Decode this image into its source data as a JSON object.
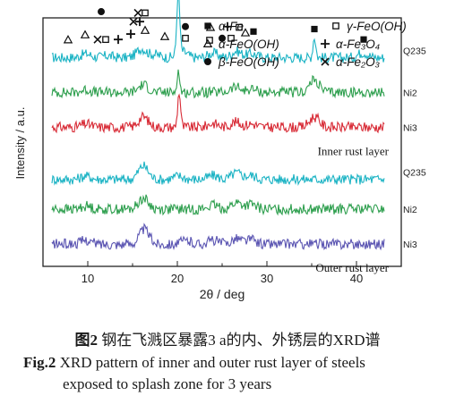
{
  "chart_data": {
    "type": "line",
    "xlabel": "2θ / deg",
    "ylabel": "Intensity / a.u.",
    "xlim": [
      5,
      45
    ],
    "xticks": [
      10,
      20,
      30,
      40
    ],
    "y_tick_labels": false,
    "groups": [
      {
        "label": "Inner rust layer",
        "series": [
          {
            "name": "Q235",
            "color": "#1bb3c4",
            "baseline": 0.84,
            "peaks": [
              [
                9.8,
                0.6
              ],
              [
                12.2,
                0.3
              ],
              [
                16.0,
                1.4
              ],
              [
                17.5,
                0.5
              ],
              [
                20.1,
                9.5
              ],
              [
                20.5,
                1.0
              ],
              [
                24.0,
                0.7
              ],
              [
                26.6,
                1.0
              ],
              [
                28.3,
                0.6
              ],
              [
                35.3,
                3.2
              ],
              [
                40.7,
                0.8
              ]
            ]
          },
          {
            "name": "Ni2",
            "color": "#2e9f4e",
            "baseline": 0.7,
            "peaks": [
              [
                9.8,
                0.4
              ],
              [
                16.2,
                1.2
              ],
              [
                20.1,
                3.2
              ],
              [
                26.5,
                0.8
              ],
              [
                28.3,
                0.5
              ],
              [
                35.3,
                1.9
              ]
            ]
          },
          {
            "name": "Ni3",
            "color": "#d82b36",
            "baseline": 0.56,
            "peaks": [
              [
                9.8,
                0.5
              ],
              [
                16.2,
                1.6
              ],
              [
                20.2,
                5.5
              ],
              [
                24.0,
                0.6
              ],
              [
                26.5,
                0.8
              ],
              [
                28.3,
                0.5
              ],
              [
                35.3,
                1.6
              ]
            ]
          }
        ]
      },
      {
        "label": "Outer rust layer",
        "series": [
          {
            "name": "Q235",
            "color": "#1bb3c4",
            "baseline": 0.35,
            "peaks": [
              [
                9.8,
                0.5
              ],
              [
                16.2,
                2.1
              ],
              [
                20.1,
                0.5
              ],
              [
                24.0,
                0.6
              ],
              [
                26.6,
                1.0
              ],
              [
                28.2,
                0.6
              ]
            ]
          },
          {
            "name": "Ni2",
            "color": "#2e9f4e",
            "baseline": 0.23,
            "peaks": [
              [
                9.8,
                0.5
              ],
              [
                16.2,
                1.7
              ],
              [
                24.0,
                0.6
              ],
              [
                26.6,
                1.0
              ],
              [
                28.2,
                0.7
              ]
            ]
          },
          {
            "name": "Ni3",
            "color": "#5b55b2",
            "baseline": 0.09,
            "peaks": [
              [
                9.8,
                0.6
              ],
              [
                16.3,
                2.3
              ],
              [
                21.0,
                0.5
              ],
              [
                24.0,
                0.6
              ],
              [
                26.6,
                0.9
              ],
              [
                28.2,
                0.7
              ]
            ]
          }
        ]
      }
    ],
    "legend": [
      {
        "symbol": "filled-square",
        "label": "α-Fe"
      },
      {
        "symbol": "open-square",
        "label": "γ-FeO(OH)"
      },
      {
        "symbol": "open-triangle",
        "label": "α-FeO(OH)"
      },
      {
        "symbol": "plus",
        "label": "α-Fe₃O₄"
      },
      {
        "symbol": "filled-circle",
        "label": "β-FeO(OH)"
      },
      {
        "symbol": "cross",
        "label": "α-Fe₂O₃"
      }
    ],
    "markers": [
      {
        "symbol": "open-triangle",
        "x": 7.8,
        "y": 0.912
      },
      {
        "symbol": "open-triangle",
        "x": 9.7,
        "y": 0.932
      },
      {
        "symbol": "filled-circle",
        "x": 11.5,
        "y": 1.025
      },
      {
        "symbol": "cross",
        "x": 11.1,
        "y": 0.913
      },
      {
        "symbol": "open-square",
        "x": 12.0,
        "y": 0.913
      },
      {
        "symbol": "plus",
        "x": 13.4,
        "y": 0.913
      },
      {
        "symbol": "plus",
        "x": 14.8,
        "y": 0.935
      },
      {
        "symbol": "filled-circle",
        "x": 15.6,
        "y": 1.11
      },
      {
        "symbol": "cross",
        "x": 15.6,
        "y": 1.02
      },
      {
        "symbol": "open-square",
        "x": 16.4,
        "y": 1.02
      },
      {
        "symbol": "cross",
        "x": 15.1,
        "y": 0.985
      },
      {
        "symbol": "plus",
        "x": 15.8,
        "y": 0.985
      },
      {
        "symbol": "open-triangle",
        "x": 16.4,
        "y": 0.95
      },
      {
        "symbol": "open-triangle",
        "x": 18.6,
        "y": 0.925
      },
      {
        "symbol": "filled-square",
        "x": 20.0,
        "y": 1.1
      },
      {
        "symbol": "filled-circle",
        "x": 20.9,
        "y": 0.965
      },
      {
        "symbol": "open-square",
        "x": 20.9,
        "y": 0.918
      },
      {
        "symbol": "open-triangle",
        "x": 23.7,
        "y": 0.962
      },
      {
        "symbol": "open-square",
        "x": 23.6,
        "y": 0.91
      },
      {
        "symbol": "filled-circle",
        "x": 25.0,
        "y": 0.918
      },
      {
        "symbol": "plus",
        "x": 25.6,
        "y": 0.965
      },
      {
        "symbol": "open-square",
        "x": 26.0,
        "y": 0.918
      },
      {
        "symbol": "open-square",
        "x": 26.9,
        "y": 0.962
      },
      {
        "symbol": "open-triangle",
        "x": 27.6,
        "y": 0.94
      },
      {
        "symbol": "filled-square",
        "x": 28.5,
        "y": 0.945
      },
      {
        "symbol": "filled-square",
        "x": 35.3,
        "y": 0.955
      },
      {
        "symbol": "filled-square",
        "x": 40.8,
        "y": 0.913
      }
    ]
  },
  "caption": {
    "cn_label": "图2",
    "cn_text": "钢在飞溅区暴露3 a的内、外锈层的XRD谱",
    "en_label": "Fig.2",
    "en_text_1": "XRD pattern of inner and outer rust layer of steels",
    "en_text_2": "exposed to splash zone for 3 years"
  }
}
